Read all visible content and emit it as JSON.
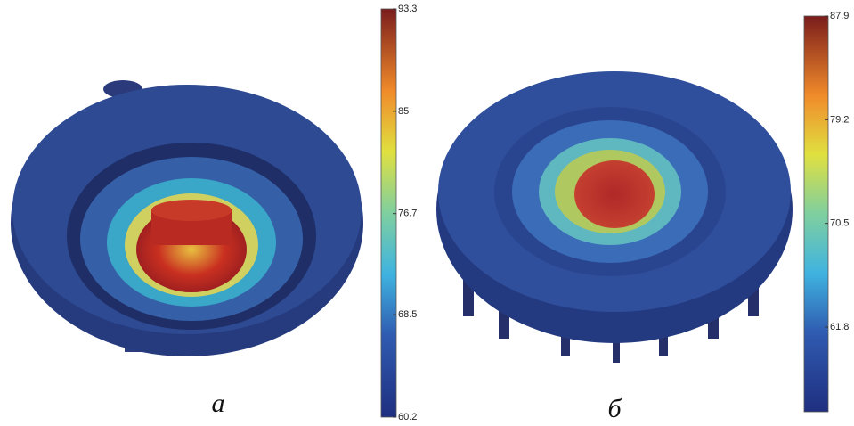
{
  "panels": [
    {
      "label": "а",
      "clim": [
        60.2,
        93.3
      ],
      "ticks": [
        93.3,
        85,
        76.7,
        68.5,
        60.2
      ]
    },
    {
      "label": "б",
      "clim": [
        54.7,
        87.9
      ],
      "ticks": [
        87.9,
        79.2,
        70.5,
        61.8
      ]
    }
  ]
}
